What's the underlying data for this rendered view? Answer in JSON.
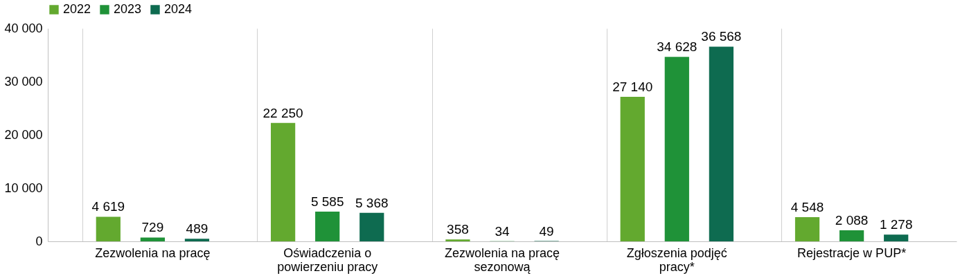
{
  "chart_data": {
    "type": "bar",
    "categories": [
      "Zezwolenia na pracę",
      "Oświadczenia o powierzeniu pracy",
      "Zezwolenia na pracę sezonową",
      "Zgłoszenia podjęć pracy*",
      "Rejestracje w PUP*"
    ],
    "series": [
      {
        "name": "2022",
        "color": "#63a92f",
        "values": [
          4619,
          22250,
          358,
          27140,
          4548
        ]
      },
      {
        "name": "2023",
        "color": "#1f9238",
        "values": [
          729,
          5585,
          34,
          34628,
          2088
        ]
      },
      {
        "name": "2024",
        "color": "#0e6b50",
        "values": [
          489,
          5368,
          49,
          36568,
          1278
        ]
      }
    ],
    "ylim": [
      0,
      40000
    ],
    "yticks": [
      {
        "value": 0,
        "label": "0"
      },
      {
        "value": 10000,
        "label": "10 000"
      },
      {
        "value": 20000,
        "label": "20 000"
      },
      {
        "value": 30000,
        "label": "30 000"
      },
      {
        "value": 40000,
        "label": "40 000"
      }
    ],
    "data_labels": true,
    "grid": "x",
    "legend": "top"
  }
}
